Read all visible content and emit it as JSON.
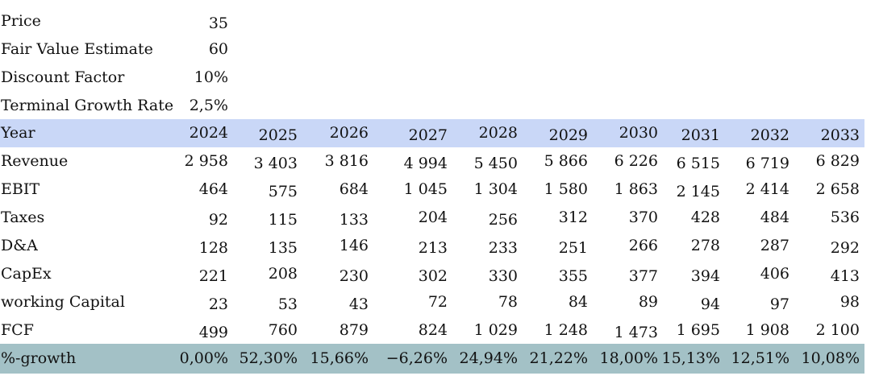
{
  "params": [
    {
      "label": "Price",
      "value": "35"
    },
    {
      "label": "Fair Value Estimate",
      "value": "60"
    },
    {
      "label": "Discount Factor",
      "value": "10%"
    },
    {
      "label": "Terminal Growth Rate",
      "value": "2,5%"
    }
  ],
  "header": {
    "label": "Year",
    "years": [
      "2024",
      "2025",
      "2026",
      "2027",
      "2028",
      "2029",
      "2030",
      "2031",
      "2032",
      "2033"
    ]
  },
  "rows": [
    {
      "label": "Revenue",
      "values": [
        "2 958",
        "3 403",
        "3 816",
        "4 994",
        "5 450",
        "5 866",
        "6 226",
        "6 515",
        "6 719",
        "6 829"
      ]
    },
    {
      "label": "EBIT",
      "values": [
        "464",
        "575",
        "684",
        "1 045",
        "1 304",
        "1 580",
        "1 863",
        "2 145",
        "2 414",
        "2 658"
      ]
    },
    {
      "label": "Taxes",
      "values": [
        "92",
        "115",
        "133",
        "204",
        "256",
        "312",
        "370",
        "428",
        "484",
        "536"
      ]
    },
    {
      "label": "D&A",
      "values": [
        "128",
        "135",
        "146",
        "213",
        "233",
        "251",
        "266",
        "278",
        "287",
        "292"
      ]
    },
    {
      "label": "CapEx",
      "values": [
        "221",
        "208",
        "230",
        "302",
        "330",
        "355",
        "377",
        "394",
        "406",
        "413"
      ]
    },
    {
      "label": "working Capital",
      "values": [
        "23",
        "53",
        "43",
        "72",
        "78",
        "84",
        "89",
        "94",
        "97",
        "98"
      ]
    },
    {
      "label": "FCF",
      "values": [
        "499",
        "760",
        "879",
        "824",
        "1 029",
        "1 248",
        "1 473",
        "1 695",
        "1 908",
        "2 100"
      ]
    }
  ],
  "growth": {
    "label": "%-growth",
    "values": [
      "0,00%",
      "52,30%",
      "15,66%",
      "−6,26%",
      "24,94%",
      "21,22%",
      "18,00%",
      "15,13%",
      "12,51%",
      "10,08%"
    ]
  },
  "colors": {
    "year_row_bg": "#c9d7f7",
    "growth_row_bg": "#a3c1c6"
  }
}
